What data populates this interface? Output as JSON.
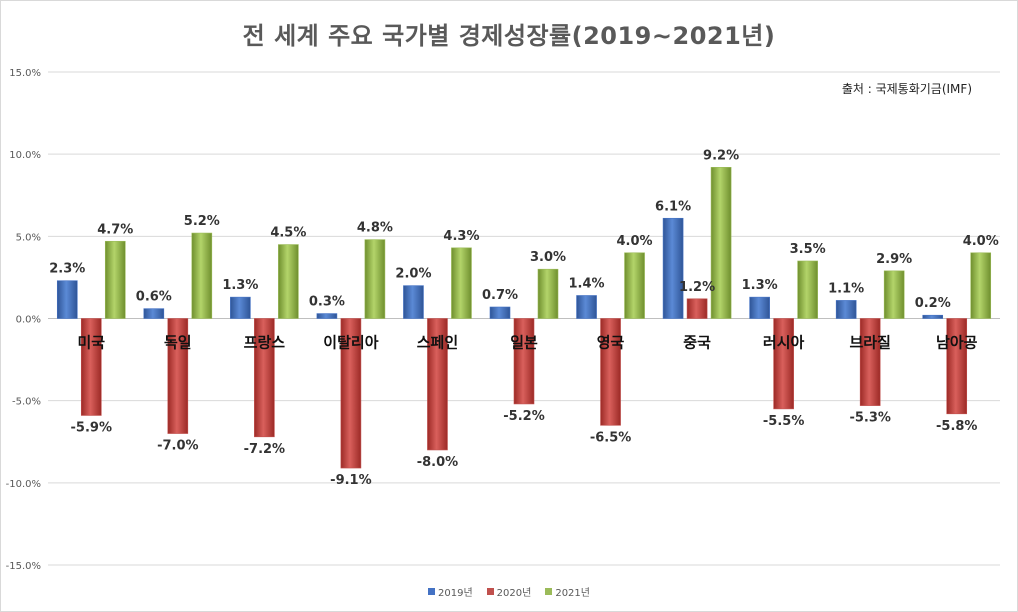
{
  "title": "전 세계 주요 국가별 경제성장률(2019~2021년)",
  "source": "출처 : 국제통화기금(IMF)",
  "chart_data": {
    "type": "bar",
    "title": "전 세계 주요 국가별 경제성장률(2019~2021년)",
    "categories": [
      "미국",
      "독일",
      "프랑스",
      "이탈리아",
      "스페인",
      "일본",
      "영국",
      "중국",
      "러시아",
      "브라질",
      "남아공"
    ],
    "series": [
      {
        "name": "2019년",
        "color": "#4472c4",
        "values": [
          2.3,
          0.6,
          1.3,
          0.3,
          2.0,
          0.7,
          1.4,
          6.1,
          1.3,
          1.1,
          0.2
        ],
        "labels": [
          "2.3%",
          "0.6%",
          "1.3%",
          "0.3%",
          "2.0%",
          "0.7%",
          "1.4%",
          "6.1%",
          "1.3%",
          "1.1%",
          "0.2%"
        ]
      },
      {
        "name": "2020년",
        "color": "#c0504d",
        "values": [
          -5.9,
          -7.0,
          -7.2,
          -9.1,
          -8.0,
          -5.2,
          -6.5,
          1.2,
          -5.5,
          -5.3,
          -5.8
        ],
        "labels": [
          "-5.9%",
          "-7.0%",
          "-7.2%",
          "-9.1%",
          "-8.0%",
          "-5.2%",
          "-6.5%",
          "1.2%",
          "-5.5%",
          "-5.3%",
          "-5.8%"
        ]
      },
      {
        "name": "2021년",
        "color": "#9bbb59",
        "values": [
          4.7,
          5.2,
          4.5,
          4.8,
          4.3,
          3.0,
          4.0,
          9.2,
          3.5,
          2.9,
          4.0
        ],
        "labels": [
          "4.7%",
          "5.2%",
          "4.5%",
          "4.8%",
          "4.3%",
          "3.0%",
          "4.0%",
          "9.2%",
          "3.5%",
          "2.9%",
          "4.0%"
        ]
      }
    ],
    "ylim": [
      -15,
      15
    ],
    "yticks": [
      15,
      10,
      5,
      0,
      -5,
      -10,
      -15
    ],
    "ytick_labels": [
      "15.0%",
      "10.0%",
      "5.0%",
      "0.0%",
      "-5.0%",
      "-10.0%",
      "-15.0%"
    ],
    "grid": true,
    "legend_position": "bottom"
  }
}
